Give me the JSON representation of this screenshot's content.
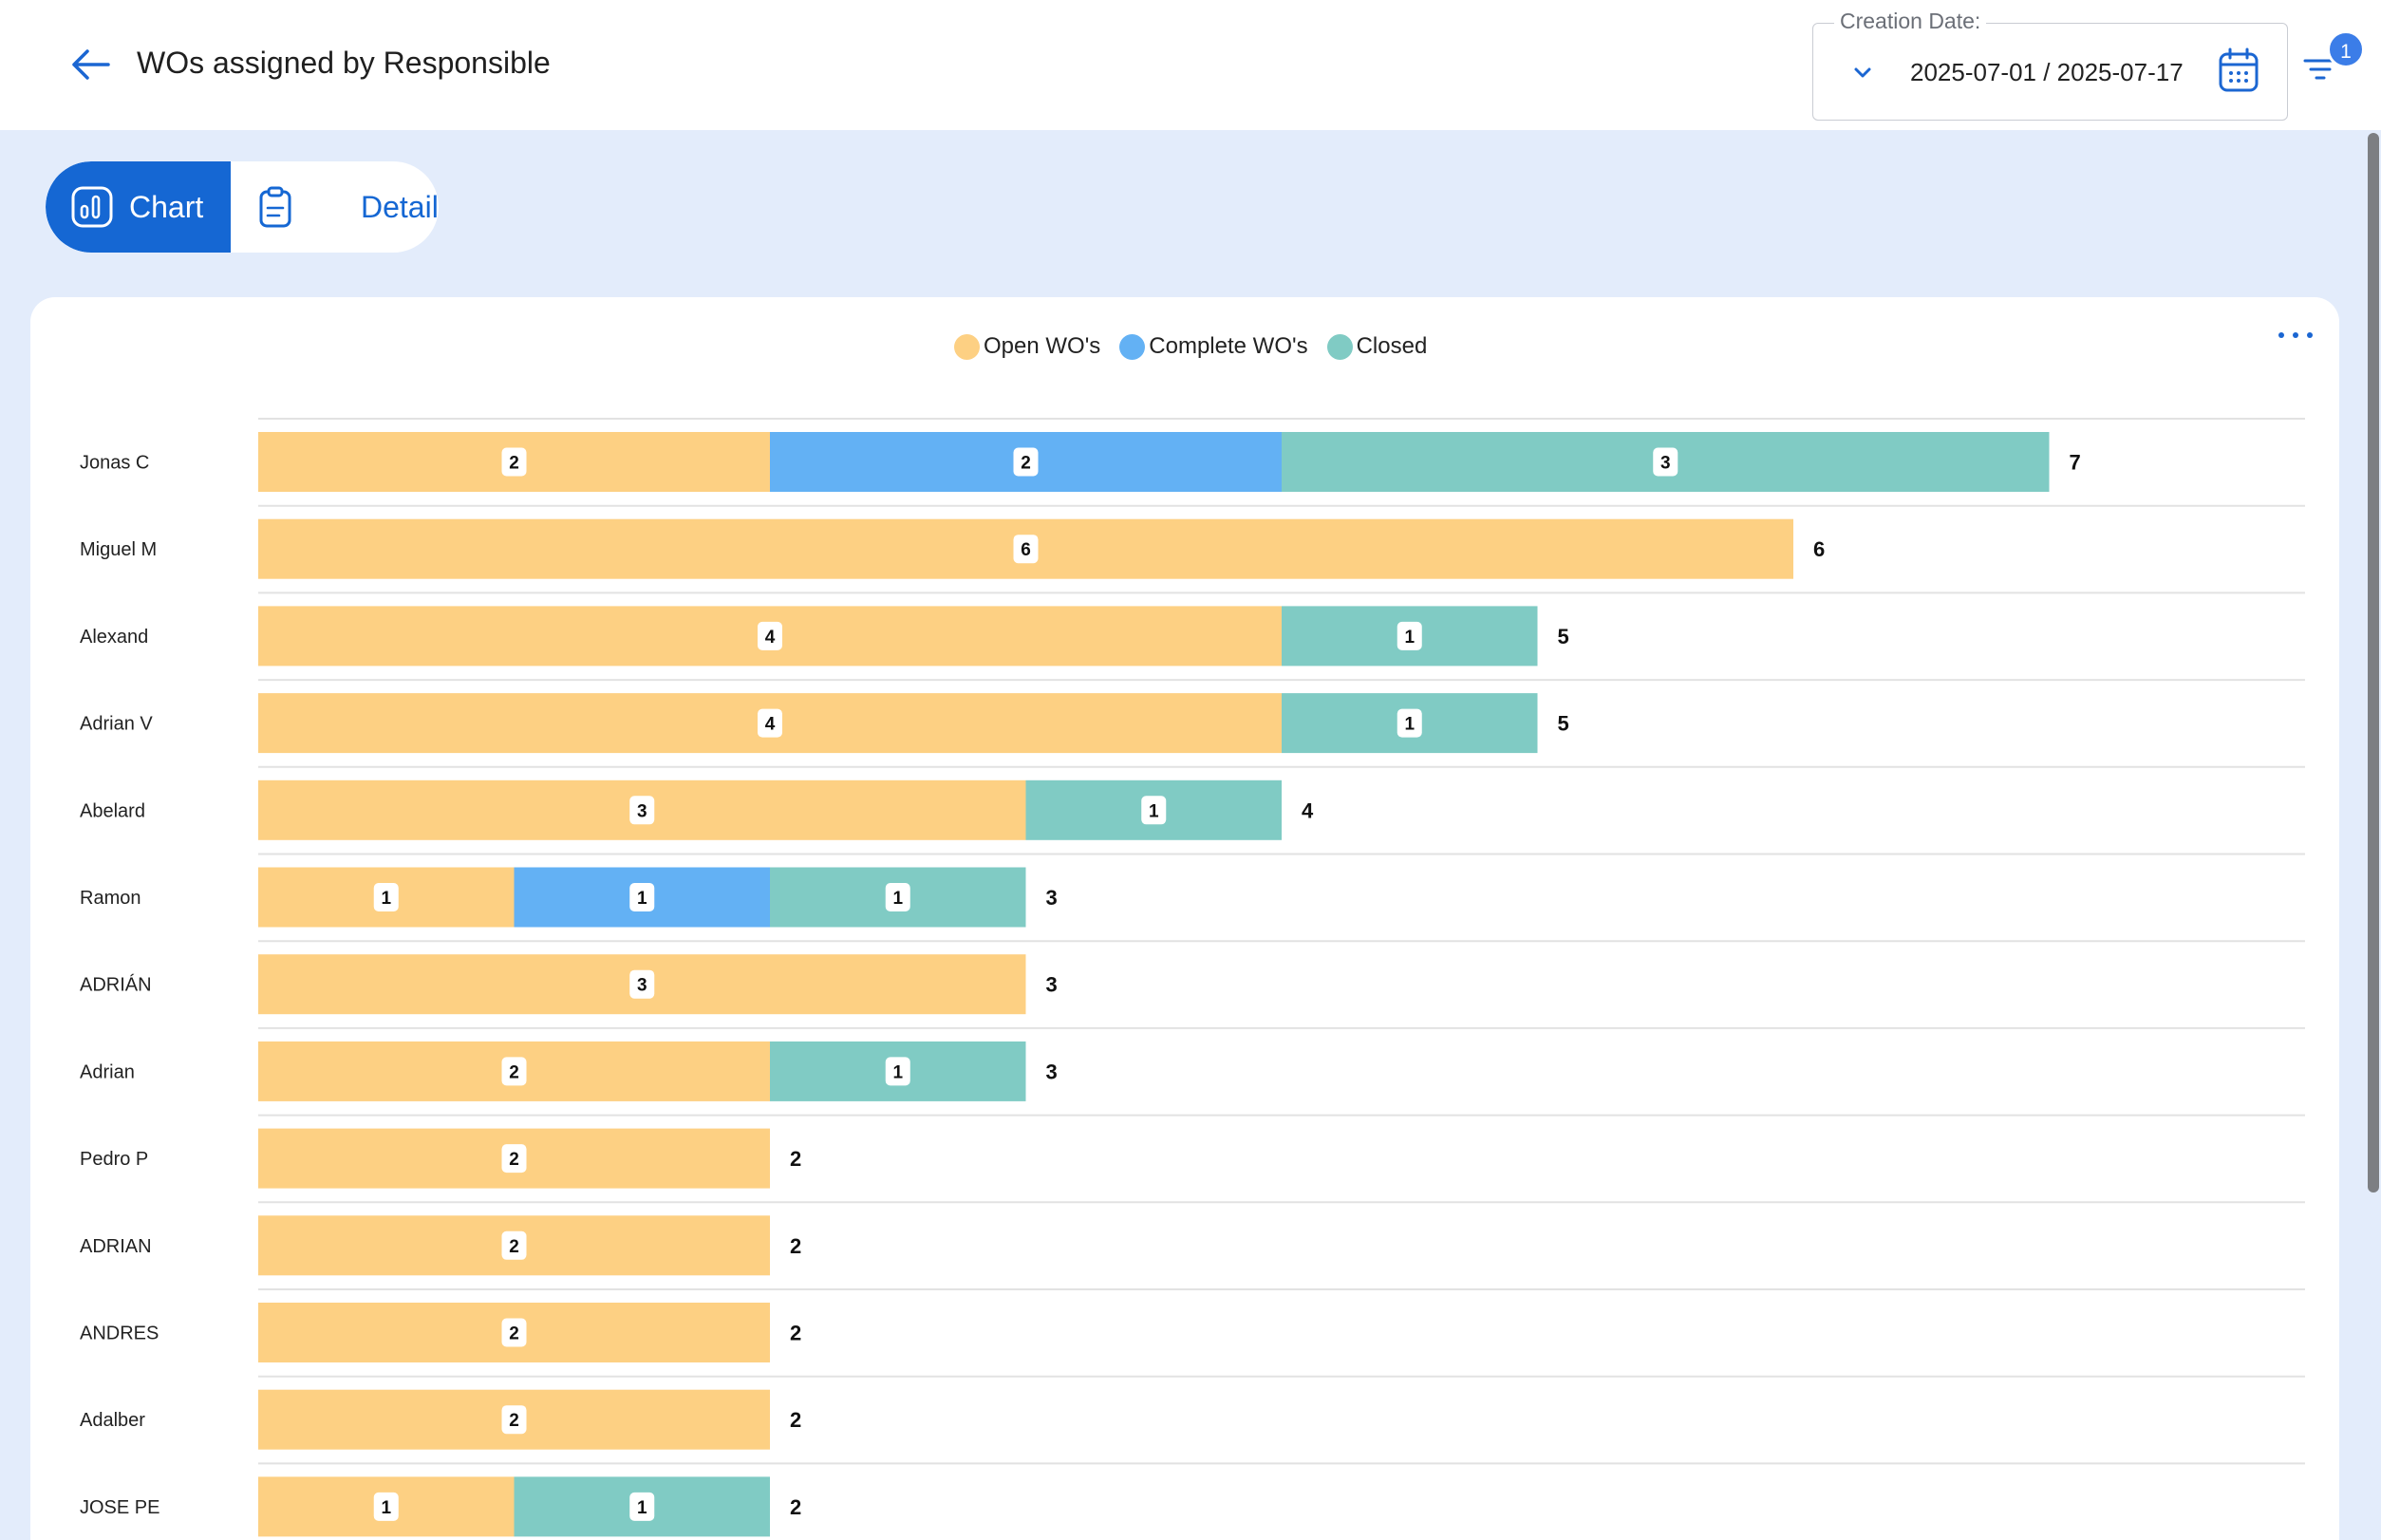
{
  "header": {
    "title": "WOs assigned by Responsible",
    "date_filter": {
      "label": "Creation Date:",
      "value": "2025-07-01 / 2025-07-17"
    },
    "filter_badge": "1"
  },
  "tabs": [
    {
      "label": "Chart",
      "active": true
    },
    {
      "label": "Details",
      "active": false
    }
  ],
  "colors": {
    "accent": "#1567d3",
    "open": "#fdd083",
    "complete": "#63b1f4",
    "closed": "#80cbc4"
  },
  "chart_data": {
    "type": "bar",
    "orientation": "horizontal",
    "stacked": true,
    "legend": {
      "position": "top-center"
    },
    "grid": true,
    "categories": [
      "Jonas C",
      "Miguel M",
      "Alexand",
      "Adrian V",
      "Abelard",
      "Ramon ",
      "ADRIÁN",
      "Adrian",
      "Pedro P",
      "ADRIAN",
      "ANDRES",
      "Adalber",
      "JOSE PE"
    ],
    "series": [
      {
        "name": "Open WO's",
        "color": "#fdd083",
        "values": [
          2,
          6,
          4,
          4,
          3,
          1,
          3,
          2,
          2,
          2,
          2,
          2,
          1
        ]
      },
      {
        "name": "Complete WO's",
        "color": "#63b1f4",
        "values": [
          2,
          0,
          0,
          0,
          0,
          1,
          0,
          0,
          0,
          0,
          0,
          0,
          0
        ]
      },
      {
        "name": "Closed",
        "color": "#80cbc4",
        "values": [
          3,
          0,
          1,
          1,
          1,
          1,
          0,
          1,
          0,
          0,
          0,
          0,
          1
        ]
      }
    ],
    "totals": [
      7,
      6,
      5,
      5,
      4,
      3,
      3,
      3,
      2,
      2,
      2,
      2,
      2
    ],
    "xlim": [
      0,
      8
    ]
  }
}
